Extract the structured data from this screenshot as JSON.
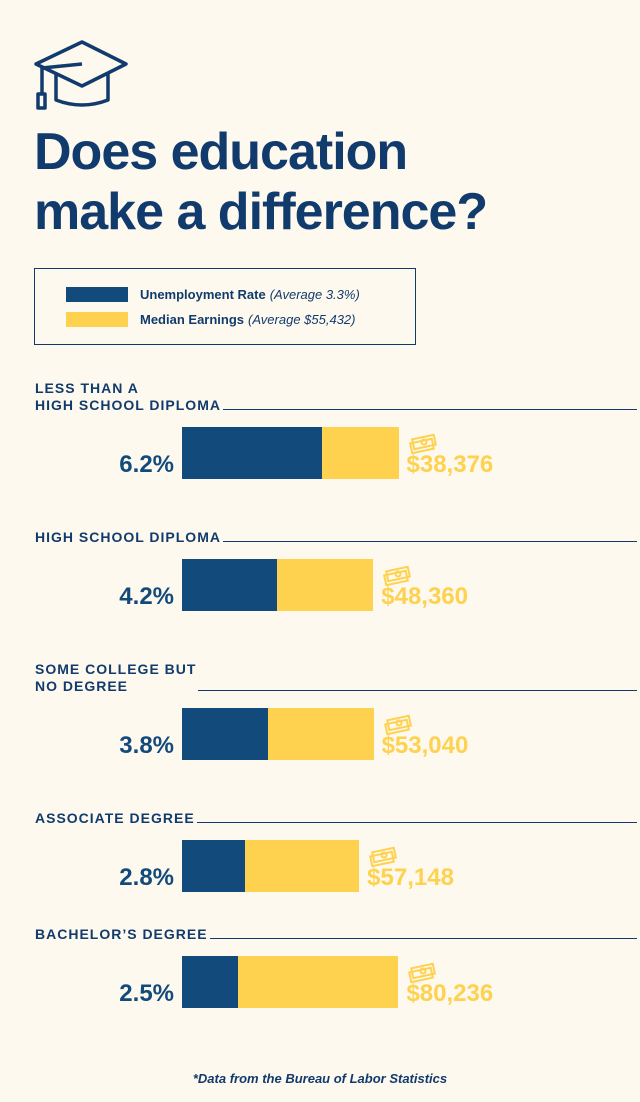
{
  "chart_data": {
    "type": "bar",
    "title": "Does education\nmake a difference?",
    "categories": [
      "LESS THAN A\nHIGH SCHOOL DIPLOMA",
      "HIGH SCHOOL DIPLOMA",
      "SOME COLLEGE BUT\nNO DEGREE",
      "ASSOCIATE DEGREE",
      "BACHELOR’S DEGREE"
    ],
    "series": [
      {
        "name": "Unemployment Rate",
        "note": "(Average 3.3%)",
        "color": "#134a7c",
        "values": [
          6.2,
          4.2,
          3.8,
          2.8,
          2.5
        ],
        "value_labels": [
          "6.2%",
          "4.2%",
          "3.8%",
          "2.8%",
          "2.5%"
        ]
      },
      {
        "name": "Median Earnings",
        "note": "(Average $55,432)",
        "color": "#fed14f",
        "values": [
          38376,
          48360,
          53040,
          57148,
          80236
        ],
        "value_labels": [
          "$38,376",
          "$48,360",
          "$53,040",
          "$57,148",
          "$80,236"
        ]
      }
    ],
    "source": "*Data from the Bureau of Labor Statistics"
  }
}
